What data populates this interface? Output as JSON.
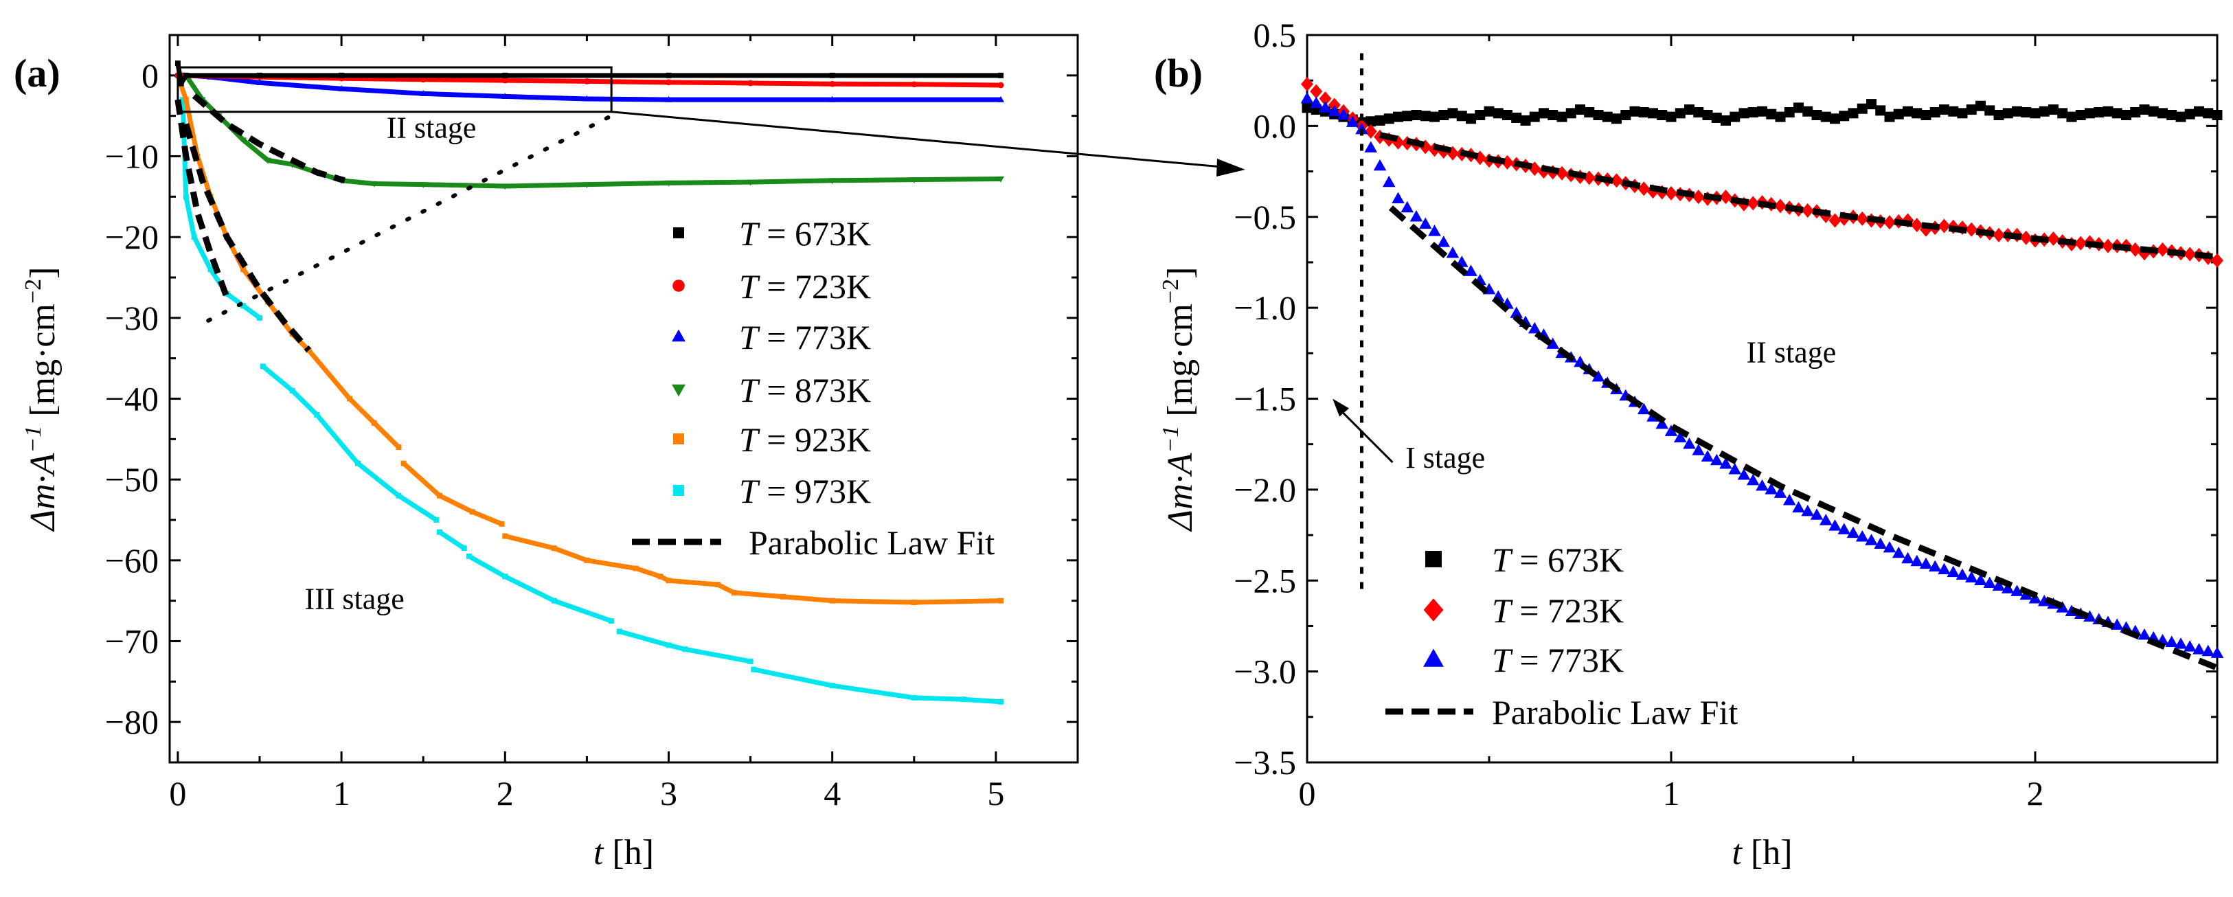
{
  "chart_data": [
    {
      "panel_label": "(a)",
      "type": "scatter",
      "xlabel_italic": "t",
      "xlabel_unit": "[h]",
      "ylabel_main": "Δm·A",
      "ylabel_sup": "−1",
      "ylabel_unit": "[mg·cm",
      "ylabel_unit_sup": "−2",
      "ylabel_close": "]",
      "xlim": [
        -0.05,
        5.5
      ],
      "ylim": [
        -85,
        5
      ],
      "xticks": [
        0,
        1,
        2,
        3,
        4,
        5
      ],
      "yticks": [
        0,
        -10,
        -20,
        -30,
        -40,
        -50,
        -60,
        -70,
        -80
      ],
      "annotations": [
        "II stage",
        "III stage"
      ],
      "zoom_box": {
        "x": [
          0,
          2.65
        ],
        "y": [
          1,
          -4.5
        ]
      },
      "legend": {
        "placement": "center-right",
        "fit_label": "Parabolic Law Fit"
      },
      "series": [
        {
          "name": "T = 673K",
          "T": "673K",
          "color": "#000000",
          "marker": "square",
          "points": [
            [
              0,
              1.5
            ],
            [
              0.02,
              -1
            ],
            [
              0.05,
              0
            ],
            [
              0.5,
              0
            ],
            [
              1,
              0
            ],
            [
              2,
              0
            ],
            [
              3,
              0
            ],
            [
              4,
              0
            ],
            [
              5.03,
              0
            ]
          ]
        },
        {
          "name": "T = 723K",
          "T": "723K",
          "color": "#ff0000",
          "marker": "circle",
          "points": [
            [
              0,
              0
            ],
            [
              0.5,
              -0.2
            ],
            [
              1,
              -0.37
            ],
            [
              1.5,
              -0.5
            ],
            [
              2,
              -0.62
            ],
            [
              2.5,
              -0.73
            ],
            [
              3,
              -0.85
            ],
            [
              3.5,
              -0.95
            ],
            [
              4,
              -1.05
            ],
            [
              4.5,
              -1.1
            ],
            [
              5.03,
              -1.2
            ]
          ]
        },
        {
          "name": "T = 773K",
          "T": "773K",
          "color": "#0000ff",
          "marker": "triangle-up",
          "points": [
            [
              0,
              0.1
            ],
            [
              0.2,
              -0.2
            ],
            [
              0.5,
              -0.9
            ],
            [
              1,
              -1.65
            ],
            [
              1.5,
              -2.25
            ],
            [
              2,
              -2.6
            ],
            [
              2.5,
              -2.9
            ],
            [
              3,
              -3.0
            ],
            [
              4,
              -3.0
            ],
            [
              5.03,
              -3.0
            ]
          ]
        },
        {
          "name": "T = 873K",
          "T": "873K",
          "color": "#1a8a1a",
          "marker": "triangle-down",
          "points": [
            [
              0.05,
              0
            ],
            [
              0.15,
              -3
            ],
            [
              0.25,
              -5
            ],
            [
              0.4,
              -8
            ],
            [
              0.55,
              -10.5
            ],
            [
              0.7,
              -11
            ],
            [
              0.85,
              -12
            ],
            [
              1.0,
              -13
            ],
            [
              1.2,
              -13.4
            ],
            [
              1.5,
              -13.5
            ],
            [
              2,
              -13.7
            ],
            [
              2.5,
              -13.5
            ],
            [
              3,
              -13.3
            ],
            [
              3.5,
              -13.2
            ],
            [
              4,
              -13.0
            ],
            [
              4.5,
              -12.9
            ],
            [
              5.03,
              -12.8
            ]
          ]
        },
        {
          "name": "T = 923K",
          "T": "923K",
          "color": "#ff8000",
          "marker": "square",
          "points": [
            [
              0,
              0
            ],
            [
              0.05,
              -3
            ],
            [
              0.12,
              -10
            ],
            [
              0.2,
              -15
            ],
            [
              0.3,
              -20
            ],
            [
              0.4,
              -24
            ],
            [
              0.55,
              -28
            ],
            [
              0.7,
              -32
            ],
            [
              0.8,
              -34
            ],
            [
              1.05,
              -40
            ],
            [
              1.2,
              -43
            ],
            [
              1.35,
              -46
            ],
            [
              1.37,
              null
            ],
            [
              1.38,
              -48
            ],
            [
              1.6,
              -52
            ],
            [
              1.8,
              -54
            ],
            [
              1.98,
              -55.5
            ],
            [
              1.99,
              null
            ],
            [
              2.0,
              -57
            ],
            [
              2.3,
              -58.5
            ],
            [
              2.5,
              -60
            ],
            [
              2.8,
              -61
            ],
            [
              2.95,
              -62
            ],
            [
              3.0,
              -62.5
            ],
            [
              3.3,
              -63
            ],
            [
              3.4,
              -64
            ],
            [
              3.7,
              -64.5
            ],
            [
              4.0,
              -65
            ],
            [
              4.5,
              -65.2
            ],
            [
              5.03,
              -65
            ]
          ]
        },
        {
          "name": "T = 973K",
          "T": "973K",
          "color": "#00e5ee",
          "marker": "square",
          "points": [
            [
              0.03,
              -3
            ],
            [
              0.05,
              -15
            ],
            [
              0.1,
              -20
            ],
            [
              0.2,
              -24
            ],
            [
              0.3,
              -27
            ],
            [
              0.4,
              -28.5
            ],
            [
              0.5,
              -30
            ],
            [
              0.51,
              null
            ],
            [
              0.52,
              -36
            ],
            [
              0.7,
              -39
            ],
            [
              0.85,
              -42
            ],
            [
              1.1,
              -48
            ],
            [
              1.35,
              -52
            ],
            [
              1.58,
              -55
            ],
            [
              1.59,
              null
            ],
            [
              1.6,
              -56.5
            ],
            [
              1.75,
              -58.5
            ],
            [
              1.76,
              null
            ],
            [
              1.78,
              -59.5
            ],
            [
              2.0,
              -62
            ],
            [
              2.3,
              -65
            ],
            [
              2.65,
              -67.5
            ],
            [
              2.66,
              null
            ],
            [
              2.7,
              -68.8
            ],
            [
              3.0,
              -70.5
            ],
            [
              3.1,
              -71
            ],
            [
              3.5,
              -72.5
            ],
            [
              3.51,
              null
            ],
            [
              3.52,
              -73.5
            ],
            [
              4.0,
              -75.5
            ],
            [
              4.5,
              -77
            ],
            [
              4.8,
              -77.2
            ],
            [
              5.03,
              -77.5
            ]
          ]
        }
      ],
      "fits": [
        {
          "for": "873K",
          "points": [
            [
              0.1,
              -2.5
            ],
            [
              0.3,
              -6
            ],
            [
              0.5,
              -8.5
            ],
            [
              0.7,
              -10.5
            ],
            [
              0.85,
              -12
            ],
            [
              1.02,
              -13
            ]
          ]
        },
        {
          "for": "923K",
          "points": [
            [
              0.05,
              -6
            ],
            [
              0.15,
              -13
            ],
            [
              0.3,
              -20
            ],
            [
              0.5,
              -26.5
            ],
            [
              0.65,
              -30.5
            ],
            [
              0.8,
              -34
            ]
          ]
        },
        {
          "for": "973K",
          "points": [
            [
              0.0,
              -3
            ],
            [
              0.05,
              -10
            ],
            [
              0.12,
              -17
            ],
            [
              0.2,
              -22
            ],
            [
              0.3,
              -27.5
            ]
          ]
        }
      ]
    },
    {
      "panel_label": "(b)",
      "type": "scatter",
      "xlabel_italic": "t",
      "xlabel_unit": "[h]",
      "ylabel_main": "Δm·A",
      "ylabel_sup": "−1",
      "ylabel_unit": "[mg·cm",
      "ylabel_unit_sup": "−2",
      "ylabel_close": "]",
      "xlim": [
        0,
        2.5
      ],
      "ylim": [
        -3.5,
        0.5
      ],
      "xticks": [
        0,
        1,
        2
      ],
      "yticks": [
        0.5,
        0.0,
        -0.5,
        -1.0,
        -1.5,
        -2.0,
        -2.5,
        -3.0,
        -3.5
      ],
      "ytick_labels": [
        "0.5",
        "0.0",
        "−0.5",
        "−1.0",
        "−1.5",
        "−2.0",
        "−2.5",
        "−3.0",
        "−3.5"
      ],
      "annotations": [
        "II stage",
        "I stage"
      ],
      "stage_boundary_t": 0.15,
      "legend": {
        "placement": "bottom-left",
        "fit_label": "Parabolic Law Fit"
      },
      "x_step": 0.05,
      "series": [
        {
          "name": "T = 673K",
          "T": "673K",
          "color": "#000000",
          "marker": "square",
          "values": [
            0.1,
            0.08,
            0.05,
            0.02,
            0.03,
            0.05,
            0.06,
            0.05,
            0.07,
            0.04,
            0.08,
            0.06,
            0.03,
            0.07,
            0.05,
            0.09,
            0.06,
            0.04,
            0.08,
            0.07,
            0.05,
            0.09,
            0.06,
            0.03,
            0.07,
            0.08,
            0.05,
            0.1,
            0.06,
            0.04,
            0.07,
            0.12,
            0.05,
            0.08,
            0.06,
            0.09,
            0.07,
            0.11,
            0.06,
            0.08,
            0.07,
            0.09,
            0.05,
            0.07,
            0.08,
            0.06,
            0.09,
            0.07,
            0.05,
            0.08,
            0.06
          ]
        },
        {
          "name": "T = 723K",
          "T": "723K",
          "color": "#ff0000",
          "marker": "diamond",
          "values": [
            0.23,
            0.15,
            0.08,
            0.0,
            -0.06,
            -0.09,
            -0.1,
            -0.13,
            -0.15,
            -0.16,
            -0.19,
            -0.2,
            -0.22,
            -0.25,
            -0.26,
            -0.28,
            -0.29,
            -0.3,
            -0.33,
            -0.36,
            -0.37,
            -0.38,
            -0.4,
            -0.39,
            -0.43,
            -0.42,
            -0.44,
            -0.46,
            -0.47,
            -0.52,
            -0.5,
            -0.52,
            -0.53,
            -0.52,
            -0.57,
            -0.55,
            -0.56,
            -0.58,
            -0.6,
            -0.6,
            -0.63,
            -0.62,
            -0.65,
            -0.64,
            -0.66,
            -0.66,
            -0.7,
            -0.68,
            -0.7,
            -0.71,
            -0.74
          ]
        },
        {
          "name": "T = 773K",
          "T": "773K",
          "color": "#0000ff",
          "marker": "triangle-up",
          "values": [
            0.15,
            0.1,
            0.06,
            -0.02,
            -0.22,
            -0.4,
            -0.5,
            -0.58,
            -0.7,
            -0.8,
            -0.9,
            -0.98,
            -1.08,
            -1.15,
            -1.25,
            -1.3,
            -1.38,
            -1.45,
            -1.52,
            -1.6,
            -1.68,
            -1.75,
            -1.82,
            -1.86,
            -1.92,
            -1.98,
            -2.02,
            -2.1,
            -2.14,
            -2.2,
            -2.24,
            -2.28,
            -2.32,
            -2.38,
            -2.41,
            -2.44,
            -2.47,
            -2.5,
            -2.53,
            -2.56,
            -2.6,
            -2.63,
            -2.67,
            -2.7,
            -2.73,
            -2.76,
            -2.8,
            -2.83,
            -2.85,
            -2.88,
            -2.9
          ]
        }
      ],
      "fits": [
        {
          "for": "723K",
          "points": [
            [
              0.2,
              -0.05
            ],
            [
              0.5,
              -0.18
            ],
            [
              1.0,
              -0.36
            ],
            [
              1.5,
              -0.5
            ],
            [
              2.0,
              -0.62
            ],
            [
              2.5,
              -0.72
            ]
          ]
        },
        {
          "for": "773K",
          "points": [
            [
              0.23,
              -0.45
            ],
            [
              0.4,
              -0.75
            ],
            [
              0.6,
              -1.1
            ],
            [
              0.8,
              -1.38
            ],
            [
              1.0,
              -1.65
            ],
            [
              1.3,
              -1.98
            ],
            [
              1.6,
              -2.25
            ],
            [
              2.0,
              -2.58
            ],
            [
              2.5,
              -2.98
            ]
          ]
        }
      ]
    }
  ],
  "legend_prefix": "T",
  "legend_eq": " = "
}
